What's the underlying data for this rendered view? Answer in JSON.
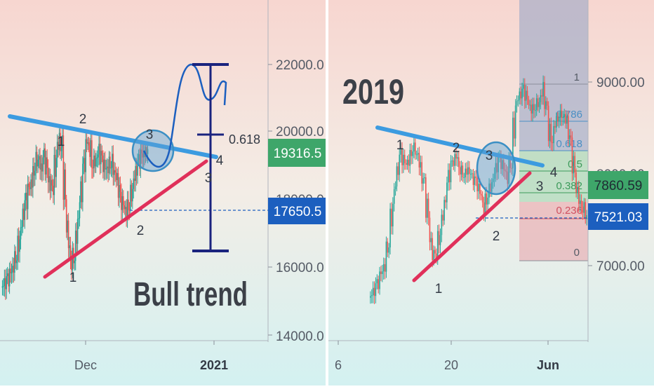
{
  "colors": {
    "bull": "#26a69a",
    "bear": "#ef5350",
    "trendline_blue": "#3c9be0",
    "trendline_red": "#e0305a",
    "circle": "#3b8fc4",
    "projection": "#1c5fbf",
    "range_bar": "#1a237e",
    "price_dashed": "#1c5fbf",
    "fib_zone_top": "#9aa7c7",
    "fib_zone_green": "#9fd7b3",
    "fib_zone_red": "#e7a1a7"
  },
  "chart_data": [
    {
      "type": "candlestick",
      "title": "",
      "x_ticks": [
        "Dec",
        "2021"
      ],
      "y_ticks": [
        "22000.0",
        "20000.0",
        "18000.0",
        "16000.0",
        "14000.0"
      ],
      "ylim": [
        14000,
        22600
      ],
      "price_badges": [
        {
          "label": "19316.5",
          "color": "#3ea66a"
        },
        {
          "label": "17650.5",
          "color": "#1c5fbf"
        }
      ],
      "annotations": {
        "wave_numbers": [
          "1",
          "2",
          "3",
          "4",
          "1",
          "2",
          "3",
          "4"
        ],
        "level_label": "0.618",
        "caption": "Bull trend"
      },
      "series": [
        {
          "values": [
            15400,
            15500,
            15600,
            15800,
            16100,
            16500,
            16900,
            17500,
            17900,
            18300,
            18600,
            19100,
            19300,
            18900,
            19200,
            18800,
            18400,
            18600,
            19400,
            19800,
            19200,
            17700,
            16700,
            16200,
            16500,
            17300,
            18100,
            18900,
            19700,
            19600,
            19100,
            19200,
            19400,
            19100,
            18900,
            19000,
            19200,
            18900,
            18500,
            18000,
            17800,
            17700,
            18000,
            18400,
            18800,
            19100,
            19300,
            19400,
            19500
          ]
        }
      ]
    },
    {
      "type": "candlestick",
      "title": "2019",
      "x_ticks": [
        "6",
        "20",
        "Jun"
      ],
      "y_ticks": [
        "9000.00",
        "8000.00",
        "7000.00"
      ],
      "ylim": [
        6600,
        9600
      ],
      "price_badges": [
        {
          "label": "7860.59",
          "color": "#3ea66a"
        },
        {
          "label": "7521.03",
          "color": "#1c5fbf"
        }
      ],
      "fib_levels": [
        "1",
        "0.786",
        "0.618",
        "0.5",
        "0.382",
        "0.236",
        "0"
      ],
      "annotations": {
        "wave_numbers": [
          "1",
          "2",
          "3",
          "4",
          "1",
          "2",
          "3",
          "4"
        ]
      },
      "series": [
        {
          "values": [
            6650,
            6700,
            6780,
            6900,
            7050,
            7350,
            7700,
            8000,
            8200,
            8100,
            8150,
            8300,
            8250,
            8050,
            7800,
            7450,
            7100,
            7200,
            7400,
            7650,
            7950,
            8100,
            8200,
            8050,
            8000,
            8050,
            7950,
            7900,
            7800,
            7650,
            7800,
            7900,
            8050,
            8150,
            8050,
            8000,
            8250,
            8750,
            8850,
            8900,
            8800,
            8700,
            8750,
            8800,
            8900,
            8600,
            8300,
            8550,
            8650,
            8650,
            8550,
            8250,
            7950,
            7700,
            7650,
            7550
          ]
        }
      ]
    }
  ]
}
